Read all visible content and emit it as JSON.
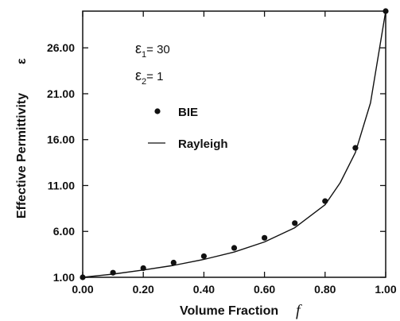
{
  "chart_data": {
    "type": "line",
    "xlabel": "Volume Fraction",
    "xlabel_symbol": "f",
    "ylabel": "Effective Permittivity",
    "ylabel_symbol": "ε",
    "xlim": [
      0,
      1
    ],
    "ylim": [
      1,
      30
    ],
    "x_ticks": [
      0,
      0.2,
      0.4,
      0.6,
      0.8,
      1.0
    ],
    "x_tick_labels": [
      "0.00",
      "0.20",
      "0.40",
      "0.60",
      "0.80",
      "1.00"
    ],
    "y_ticks": [
      1,
      6,
      11,
      16,
      21,
      26
    ],
    "y_tick_labels": [
      "1.00",
      "6.00",
      "11.00",
      "16.00",
      "21.00",
      "26.00"
    ],
    "grid": false,
    "annotations": {
      "eps1_symbol": "ε",
      "eps1_sub": "1",
      "eps1_value": "= 30",
      "eps2_symbol": "ε",
      "eps2_sub": "2",
      "eps2_value": "= 1"
    },
    "legend": {
      "placement": "top-left",
      "entries": [
        "BIE",
        "Rayleigh"
      ]
    },
    "series": [
      {
        "name": "BIE",
        "style": "markers",
        "x": [
          0.0,
          0.1,
          0.2,
          0.3,
          0.4,
          0.5,
          0.6,
          0.7,
          0.8,
          0.9,
          1.0
        ],
        "y": [
          1.0,
          1.5,
          2.0,
          2.6,
          3.3,
          4.2,
          5.3,
          6.9,
          9.3,
          15.1,
          30.0
        ]
      },
      {
        "name": "Rayleigh",
        "style": "line",
        "x": [
          0.0,
          0.1,
          0.2,
          0.3,
          0.4,
          0.5,
          0.6,
          0.7,
          0.8,
          0.85,
          0.9,
          0.95,
          1.0
        ],
        "y": [
          1.0,
          1.35,
          1.8,
          2.3,
          2.95,
          3.75,
          4.85,
          6.4,
          8.9,
          11.3,
          14.6,
          20.0,
          30.0
        ]
      }
    ]
  }
}
